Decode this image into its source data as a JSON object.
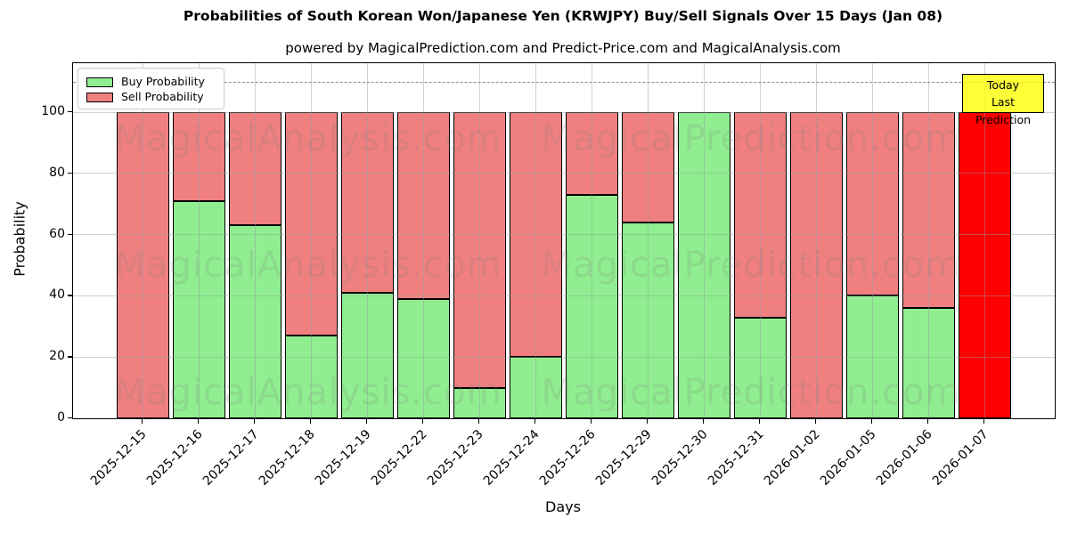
{
  "title": "Probabilities of South Korean Won/Japanese Yen (KRWJPY) Buy/Sell Signals Over 15 Days (Jan 08)",
  "subtitle": "powered by MagicalPrediction.com and Predict-Price.com and MagicalAnalysis.com",
  "legend": {
    "items": [
      {
        "label": "Buy Probability",
        "color": "#90ee90"
      },
      {
        "label": "Sell Probability",
        "color": "#f08080"
      }
    ]
  },
  "annotation_box": {
    "line1": "Today",
    "line2": "Last Prediction",
    "bg_color": "#ffff00"
  },
  "watermarks": {
    "left_text": "MagicalAnalysis.com",
    "right_text": "MagicalPrediction.com"
  },
  "chart_data": {
    "type": "bar",
    "stacked": true,
    "title": "Probabilities of South Korean Won/Japanese Yen (KRWJPY) Buy/Sell Signals Over 15 Days (Jan 08)",
    "xlabel": "Days",
    "ylabel": "Probability",
    "ylim": [
      0,
      116
    ],
    "yticks": [
      0,
      20,
      40,
      60,
      80,
      100
    ],
    "grid": true,
    "legend_position": "upper left",
    "dashed_reference_line_y": 110,
    "categories": [
      "2025-12-15",
      "2025-12-16",
      "2025-12-17",
      "2025-12-18",
      "2025-12-19",
      "2025-12-22",
      "2025-12-23",
      "2025-12-24",
      "2025-12-26",
      "2025-12-29",
      "2025-12-30",
      "2025-12-31",
      "2026-01-02",
      "2026-01-05",
      "2026-01-06",
      "2026-01-07"
    ],
    "series": [
      {
        "name": "Buy Probability",
        "color": "#90ee90",
        "values": [
          0,
          71,
          63,
          27,
          41,
          39,
          10,
          20,
          73,
          64,
          100,
          33,
          0,
          40,
          36,
          0
        ]
      },
      {
        "name": "Sell Probability",
        "color": "#f08080",
        "values": [
          100,
          29,
          37,
          73,
          59,
          61,
          90,
          80,
          27,
          36,
          0,
          67,
          100,
          60,
          64,
          100
        ]
      }
    ],
    "today_bar": {
      "index": 15,
      "category": "2026-01-07",
      "color": "#ff0000",
      "note": "full-height bright red bar marked Today / Last Prediction"
    }
  }
}
